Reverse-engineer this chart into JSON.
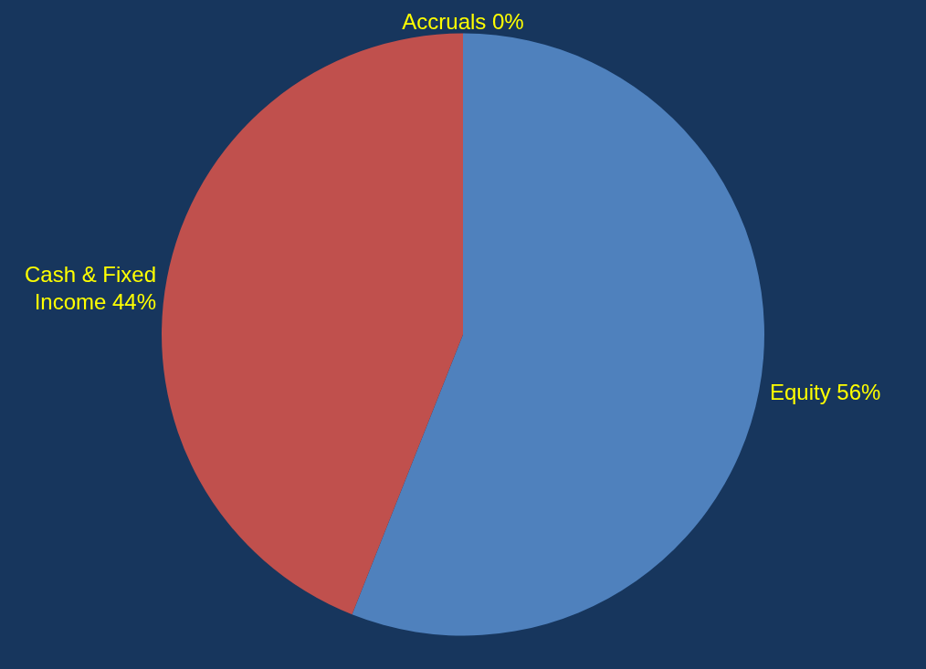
{
  "chart_data": {
    "type": "pie",
    "categories": [
      "Equity",
      "Cash & Fixed Income",
      "Accruals"
    ],
    "values": [
      56,
      44,
      0
    ],
    "value_labels": [
      "56%",
      "44%",
      "0%"
    ],
    "colors": [
      "#4f81bd",
      "#c0504d",
      "#9bbb59"
    ]
  }
}
